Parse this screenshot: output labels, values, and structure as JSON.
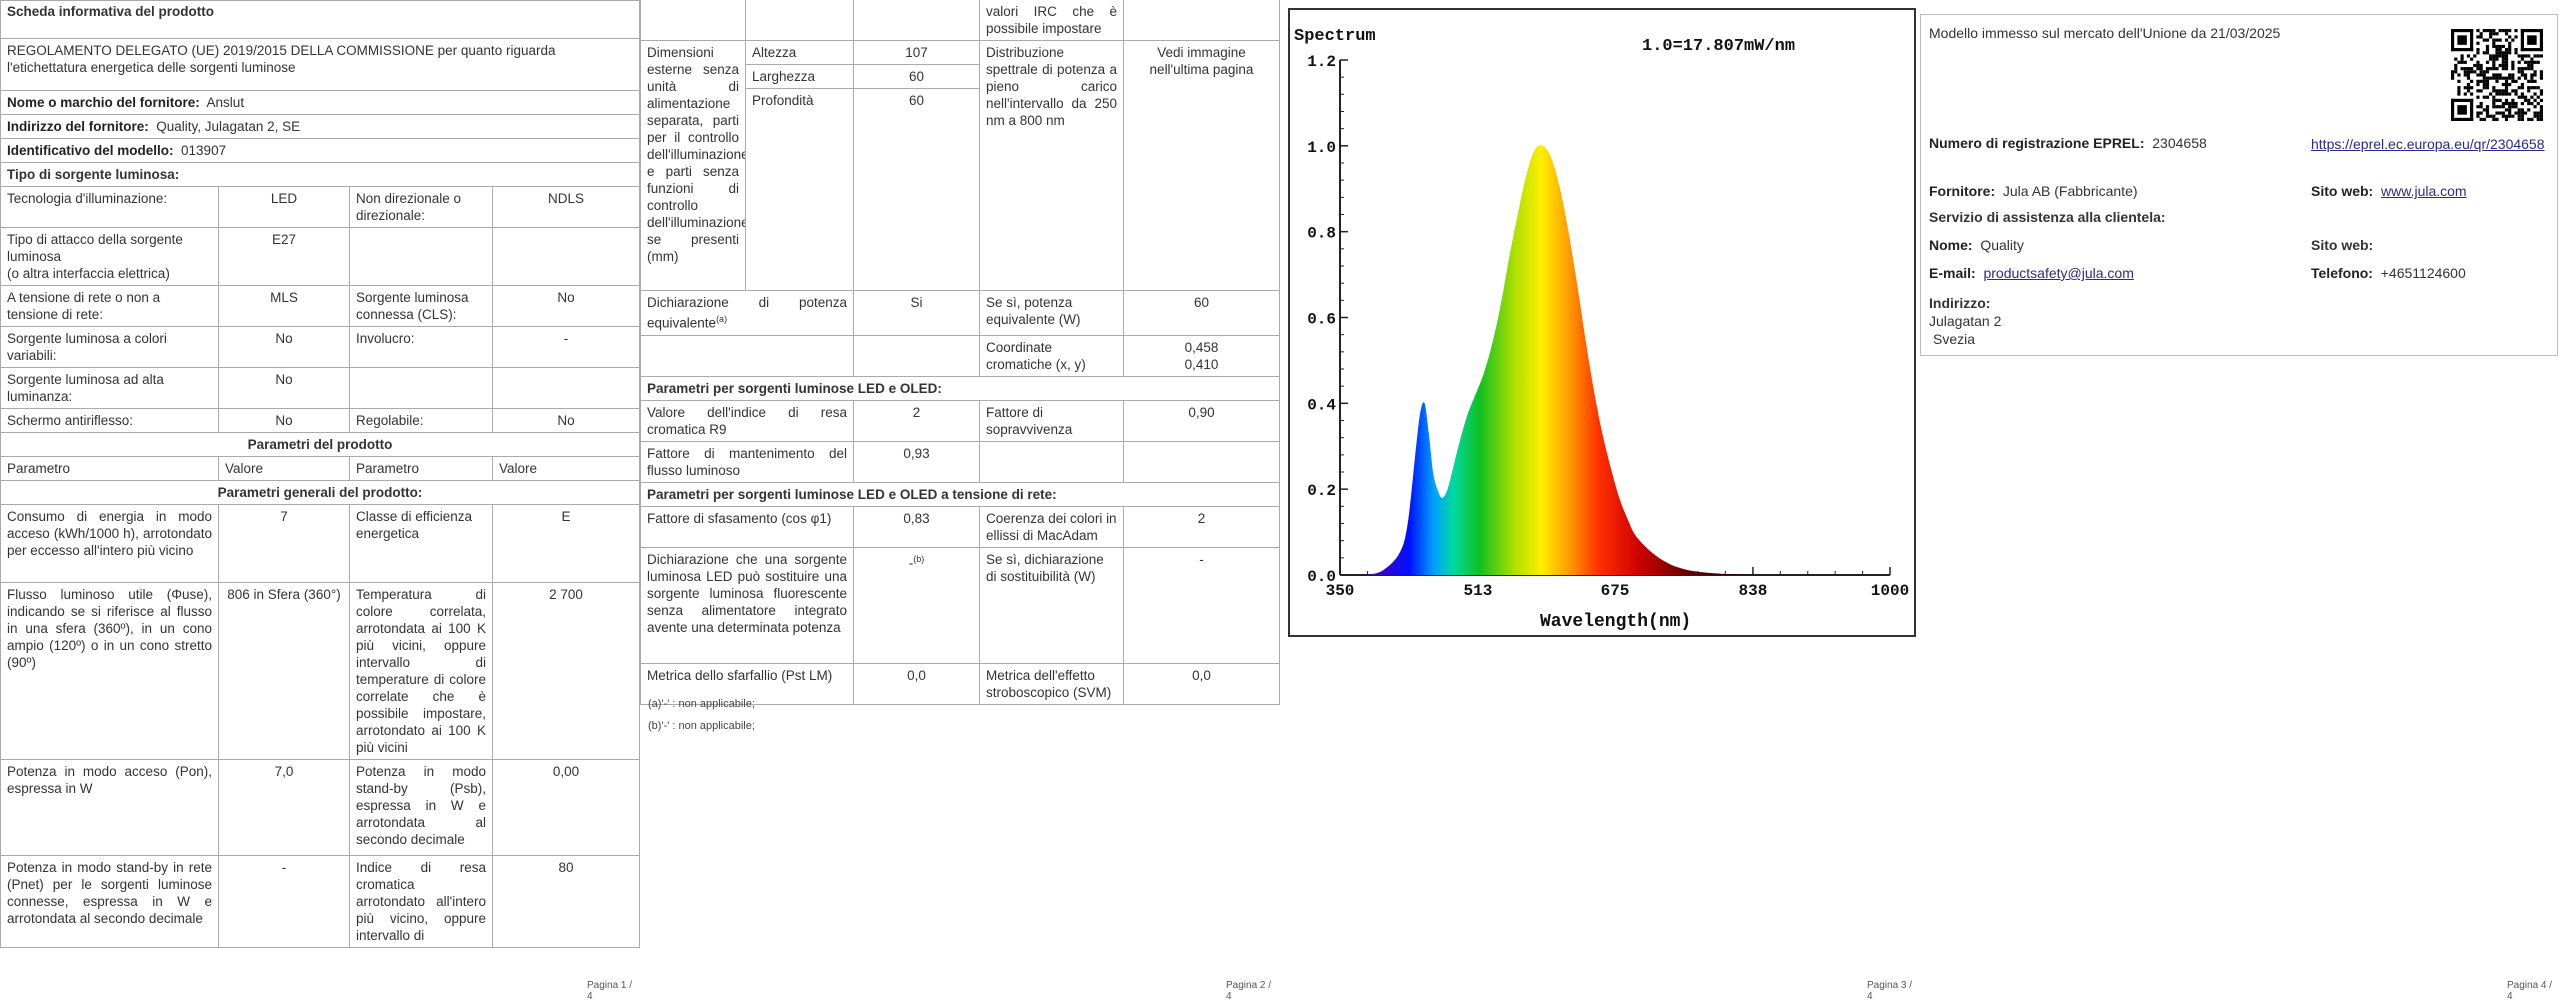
{
  "page1": {
    "title": "Scheda informativa del prodotto",
    "regulation": "REGOLAMENTO DELEGATO (UE) 2019/2015 DELLA COMMISSIONE per quanto riguarda l'etichettatura energetica delle sorgenti luminose",
    "supplier_name_label": "Nome o marchio del fornitore:",
    "supplier_name": "Anslut",
    "supplier_address_label": "Indirizzo del fornitore:",
    "supplier_address": "Quality, Julagatan 2, SE",
    "model_label": "Identificativo del modello:",
    "model": "013907",
    "source_type_label": "Tipo di sorgente luminosa:",
    "rows": [
      {
        "l1": "Tecnologia d'illuminazione:",
        "v1": "LED",
        "l2": "Non direzionale o direzionale:",
        "v2": "NDLS"
      },
      {
        "l1": "Tipo di attacco della sorgente luminosa\n(o altra interfaccia elettrica)",
        "v1": "E27",
        "l2": "",
        "v2": ""
      },
      {
        "l1": "A tensione di rete o non a tensione di rete:",
        "v1": "MLS",
        "l2": "Sorgente luminosa connessa (CLS):",
        "v2": "No"
      },
      {
        "l1": "Sorgente luminosa a colori variabili:",
        "v1": "No",
        "l2": "Involucro:",
        "v2": "-"
      },
      {
        "l1": "Sorgente luminosa ad alta luminanza:",
        "v1": "No",
        "l2": "",
        "v2": ""
      },
      {
        "l1": "Schermo antiriflesso:",
        "v1": "No",
        "l2": "Regolabile:",
        "v2": "No"
      }
    ],
    "params_header": "Parametri del prodotto",
    "col_param": "Parametro",
    "col_value": "Valore",
    "general_header": "Parametri generali del prodotto:",
    "general_rows": [
      {
        "l1": "Consumo di energia in modo acceso (kWh/1000 h), arrotondato per eccesso all'intero più vicino",
        "v1": "7",
        "l2": "Classe di efficienza energetica",
        "v2": "E"
      },
      {
        "l1": "Flusso luminoso utile (Φuse), indicando se si riferisce al flusso in una sfera (360º), in un cono ampio (120º) o in un cono stretto (90º)",
        "v1": "806 in Sfera (360°)",
        "l2": "Temperatura di colore correlata, arrotondata ai 100 K più vicini, oppure intervallo di temperature di colore correlate che è possibile impostare, arrotondato ai 100 K più vicini",
        "v2": "2 700"
      },
      {
        "l1": "Potenza in modo acceso (Pon), espressa in W",
        "v1": "7,0",
        "l2": "Potenza in modo stand-by (Psb), espressa in W e arrotondata al secondo decimale",
        "v2": "0,00"
      },
      {
        "l1": "Potenza in modo stand-by in rete (Pnet) per le sorgenti luminose connesse, espressa in W e arrotondata al secondo decimale",
        "v1": "-",
        "l2": "Indice di resa cromatica arrotondato all'intero più vicino, oppure intervallo di",
        "v2": "80"
      }
    ],
    "page_number": "Pagina 1 / 4"
  },
  "page2": {
    "cont_text": "valori IRC che è possibile impostare",
    "dim_label": "Dimensioni esterne senza unità di alimentazione separata, parti per il controllo dell'illuminazione e parti senza funzioni di controllo dell'illuminazione, se presenti (mm)",
    "dims": [
      {
        "label": "Altezza",
        "value": "107"
      },
      {
        "label": "Larghezza",
        "value": "60"
      },
      {
        "label": "Profondità",
        "value": "60"
      }
    ],
    "spd_label": "Distribuzione spettrale di potenza a pieno carico nell'intervallo da 250 nm a 800 nm",
    "spd_value": "Vedi immagine nell'ultima pagina",
    "equiv_label": "Dichiarazione di potenza equivalente",
    "equiv_value": "Si",
    "equiv_w_label": "Se sì, potenza equivalente (W)",
    "equiv_w_value": "60",
    "chroma_label": "Coordinate cromatiche (x, y)",
    "chroma_x": "0,458",
    "chroma_y": "0,410",
    "led_header": "Parametri per sorgenti luminose LED e OLED:",
    "led_rows": [
      {
        "l1": "Valore dell'indice di resa cromatica R9",
        "v1": "2",
        "l2": "Fattore di sopravvivenza",
        "v2": "0,90"
      },
      {
        "l1": "Fattore di mantenimento del flusso luminoso",
        "v1": "0,93",
        "l2": "",
        "v2": ""
      }
    ],
    "mls_header": "Parametri per sorgenti luminose LED e OLED a tensione di rete:",
    "mls_rows": [
      {
        "l1": "Fattore di sfasamento (cos φ1)",
        "v1": "0,83",
        "l2": "Coerenza dei colori in ellissi di MacAdam",
        "v2": "2"
      },
      {
        "l1": "Dichiarazione che una sorgente luminosa LED può sostituire una sorgente luminosa fluorescente senza alimentatore integrato avente una determinata potenza",
        "v1": "-",
        "l2": "Se sì, dichiarazione di sostituibilità (W)",
        "v2": "-"
      },
      {
        "l1": "Metrica dello sfarfallio (Pst LM)",
        "v1": "0,0",
        "l2": "Metrica dell'effetto stroboscopico (SVM)",
        "v2": "0,0"
      }
    ],
    "footnote_a": "(a)'-' : non applicabile;",
    "footnote_b": "(b)'-' : non applicabile;",
    "page_number": "Pagina 2 / 4"
  },
  "page3": {
    "page_number": "Pagina 3 / 4",
    "chart_data": {
      "type": "line",
      "title": "Spectrum",
      "annotation": "1.0=17.807mW/nm",
      "xlabel": "Wavelength(nm)",
      "ylabel": "",
      "xlim": [
        350,
        1000
      ],
      "ylim": [
        0,
        1.2
      ],
      "x_ticks": [
        "350",
        "513",
        "675",
        "838",
        "1000"
      ],
      "y_ticks": [
        "0.0",
        "0.2",
        "0.4",
        "0.6",
        "0.8",
        "1.0",
        "1.2"
      ],
      "grid": false,
      "x": [
        380,
        400,
        420,
        430,
        440,
        445,
        450,
        455,
        460,
        465,
        470,
        475,
        480,
        490,
        500,
        510,
        520,
        530,
        540,
        550,
        560,
        570,
        580,
        590,
        600,
        610,
        620,
        630,
        640,
        650,
        660,
        670,
        680,
        690,
        700,
        720,
        740,
        760,
        780,
        800,
        830,
        860,
        900
      ],
      "values": [
        0.0,
        0.01,
        0.05,
        0.12,
        0.3,
        0.38,
        0.4,
        0.33,
        0.24,
        0.2,
        0.18,
        0.19,
        0.22,
        0.3,
        0.37,
        0.42,
        0.47,
        0.54,
        0.63,
        0.74,
        0.84,
        0.93,
        0.99,
        1.0,
        0.97,
        0.9,
        0.8,
        0.68,
        0.55,
        0.43,
        0.33,
        0.25,
        0.18,
        0.13,
        0.09,
        0.05,
        0.025,
        0.012,
        0.006,
        0.003,
        0.001,
        0.0,
        0.0
      ]
    }
  },
  "page4": {
    "market_date": "Modello immesso sul mercato dell'Unione da 21/03/2025",
    "eprel_label": "Numero di registrazione EPREL:",
    "eprel_number": "2304658",
    "eprel_url": "https://eprel.ec.europa.eu/qr/2304658",
    "supplier_label": "Fornitore:",
    "supplier_value": "Jula AB (Fabbricante)",
    "website_label": "Sito web:",
    "website_value": "www.jula.com",
    "service_label": "Servizio di assistenza alla clientela:",
    "name_label": "Nome:",
    "name_value": "Quality",
    "website2_label": "Sito web:",
    "email_label": "E-mail:",
    "email_value": "productsafety@jula.com",
    "phone_label": "Telefono:",
    "phone_value": "+4651124600",
    "address_label": "Indirizzo:",
    "address_line1": "Julagatan 2",
    "address_line2": "Svezia",
    "page_number": "Pagina 4 / 4"
  }
}
